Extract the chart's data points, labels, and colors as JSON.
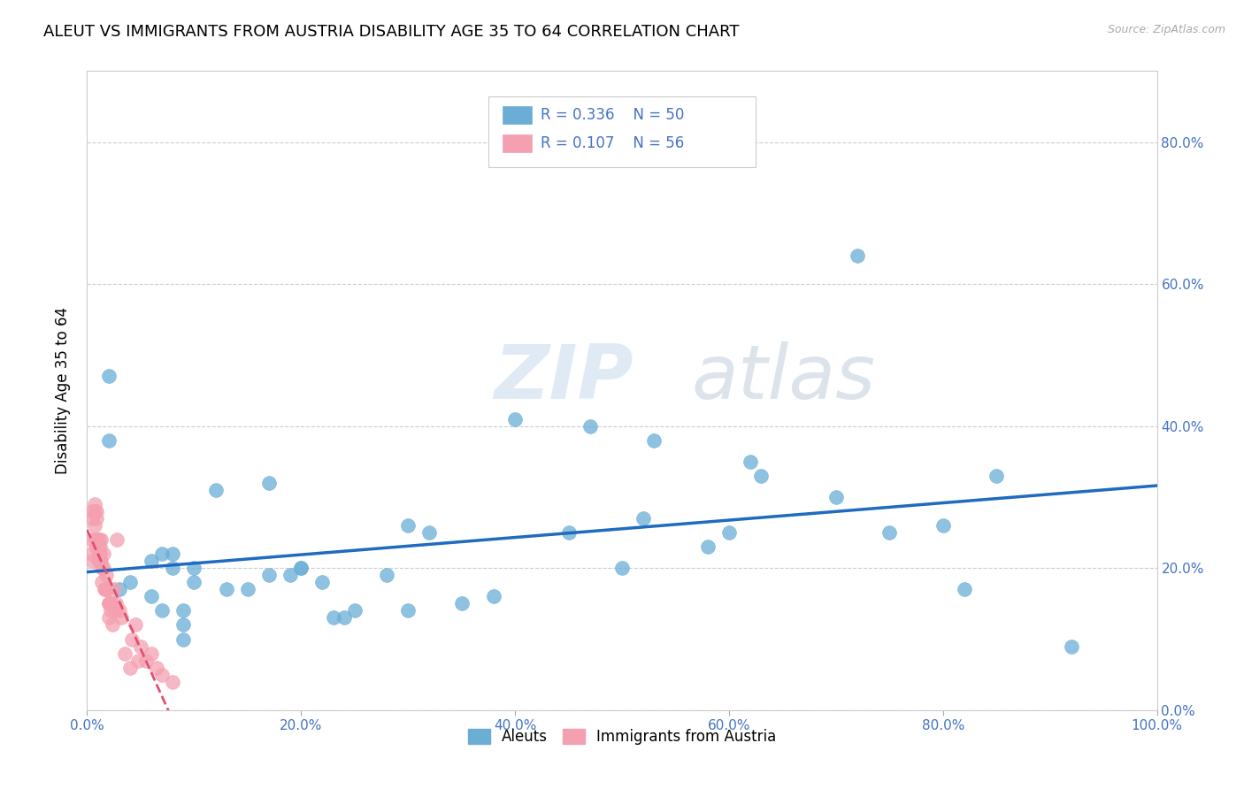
{
  "title": "ALEUT VS IMMIGRANTS FROM AUSTRIA DISABILITY AGE 35 TO 64 CORRELATION CHART",
  "source": "Source: ZipAtlas.com",
  "ylabel": "Disability Age 35 to 64",
  "legend_label1": "Aleuts",
  "legend_label2": "Immigrants from Austria",
  "R1": "0.336",
  "N1": "50",
  "R2": "0.107",
  "N2": "56",
  "xmin": 0.0,
  "xmax": 1.0,
  "ymin": 0.0,
  "ymax": 0.9,
  "xticks": [
    0.0,
    0.2,
    0.4,
    0.6,
    0.8,
    1.0
  ],
  "yticks": [
    0.0,
    0.2,
    0.4,
    0.6,
    0.8
  ],
  "xtick_labels": [
    "0.0%",
    "20.0%",
    "40.0%",
    "60.0%",
    "80.0%",
    "100.0%"
  ],
  "ytick_labels": [
    "0.0%",
    "20.0%",
    "40.0%",
    "60.0%",
    "80.0%"
  ],
  "color_aleuts": "#6aaed6",
  "color_austria": "#f4a0b0",
  "trend_color_aleuts": "#1f6bbf",
  "trend_color_austria": "#e05070",
  "watermark_zip": "ZIP",
  "watermark_atlas": "atlas",
  "scatter_aleuts_x": [
    0.02,
    0.02,
    0.03,
    0.04,
    0.06,
    0.06,
    0.07,
    0.07,
    0.08,
    0.08,
    0.09,
    0.09,
    0.09,
    0.1,
    0.1,
    0.12,
    0.13,
    0.15,
    0.17,
    0.17,
    0.19,
    0.2,
    0.2,
    0.22,
    0.23,
    0.24,
    0.25,
    0.28,
    0.3,
    0.3,
    0.32,
    0.35,
    0.38,
    0.4,
    0.45,
    0.47,
    0.5,
    0.52,
    0.53,
    0.58,
    0.6,
    0.62,
    0.63,
    0.7,
    0.72,
    0.75,
    0.8,
    0.82,
    0.85,
    0.92
  ],
  "scatter_aleuts_y": [
    0.47,
    0.38,
    0.17,
    0.18,
    0.21,
    0.16,
    0.22,
    0.14,
    0.22,
    0.2,
    0.14,
    0.12,
    0.1,
    0.2,
    0.18,
    0.31,
    0.17,
    0.17,
    0.19,
    0.32,
    0.19,
    0.2,
    0.2,
    0.18,
    0.13,
    0.13,
    0.14,
    0.19,
    0.26,
    0.14,
    0.25,
    0.15,
    0.16,
    0.41,
    0.25,
    0.4,
    0.2,
    0.27,
    0.38,
    0.23,
    0.25,
    0.35,
    0.33,
    0.3,
    0.64,
    0.25,
    0.26,
    0.17,
    0.33,
    0.09
  ],
  "scatter_austria_x": [
    0.005,
    0.005,
    0.005,
    0.005,
    0.005,
    0.007,
    0.007,
    0.007,
    0.008,
    0.008,
    0.008,
    0.009,
    0.009,
    0.01,
    0.01,
    0.01,
    0.011,
    0.011,
    0.012,
    0.012,
    0.012,
    0.013,
    0.013,
    0.014,
    0.014,
    0.015,
    0.015,
    0.016,
    0.017,
    0.018,
    0.018,
    0.019,
    0.02,
    0.02,
    0.02,
    0.021,
    0.022,
    0.023,
    0.024,
    0.025,
    0.026,
    0.027,
    0.028,
    0.03,
    0.032,
    0.035,
    0.04,
    0.042,
    0.045,
    0.048,
    0.05,
    0.055,
    0.06,
    0.065,
    0.07,
    0.08
  ],
  "scatter_austria_y": [
    0.28,
    0.27,
    0.24,
    0.22,
    0.21,
    0.29,
    0.28,
    0.26,
    0.24,
    0.24,
    0.23,
    0.28,
    0.27,
    0.24,
    0.23,
    0.21,
    0.24,
    0.22,
    0.23,
    0.22,
    0.21,
    0.24,
    0.21,
    0.2,
    0.18,
    0.22,
    0.2,
    0.17,
    0.17,
    0.19,
    0.17,
    0.17,
    0.15,
    0.15,
    0.13,
    0.15,
    0.14,
    0.15,
    0.12,
    0.17,
    0.14,
    0.15,
    0.24,
    0.14,
    0.13,
    0.08,
    0.06,
    0.1,
    0.12,
    0.07,
    0.09,
    0.07,
    0.08,
    0.06,
    0.05,
    0.04
  ]
}
